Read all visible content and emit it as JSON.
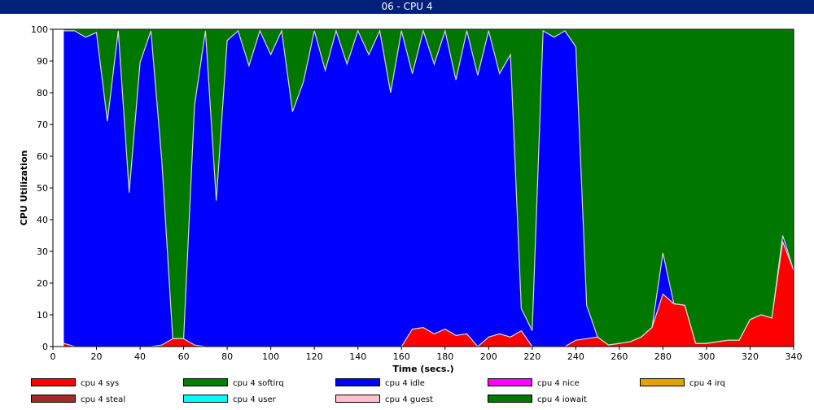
{
  "window": {
    "title": "06 - CPU 4"
  },
  "chart_data": {
    "type": "area",
    "stacked": true,
    "title": "",
    "xlabel": "Time (secs.)",
    "ylabel": "CPU Utilization",
    "xlim": [
      0,
      340
    ],
    "ylim": [
      0,
      100
    ],
    "xticks": [
      0,
      20,
      40,
      60,
      80,
      100,
      120,
      140,
      160,
      180,
      200,
      220,
      240,
      260,
      280,
      300,
      320,
      340
    ],
    "yticks": [
      0,
      10,
      20,
      30,
      40,
      50,
      60,
      70,
      80,
      90,
      100
    ],
    "grid": false,
    "legend_position": "bottom",
    "x": [
      5,
      10,
      15,
      20,
      25,
      30,
      35,
      40,
      45,
      50,
      55,
      60,
      65,
      70,
      75,
      80,
      85,
      90,
      95,
      100,
      105,
      110,
      115,
      120,
      125,
      130,
      135,
      140,
      145,
      150,
      155,
      160,
      165,
      170,
      175,
      180,
      185,
      190,
      195,
      200,
      205,
      210,
      215,
      220,
      225,
      230,
      235,
      240,
      245,
      250,
      255,
      260,
      265,
      270,
      275,
      280,
      285,
      290,
      295,
      300,
      305,
      310,
      315,
      320,
      325,
      330,
      335,
      340
    ],
    "series": [
      {
        "name": "cpu 4 sys",
        "color": "#ff0000",
        "values": [
          1,
          0,
          0,
          0,
          0,
          0,
          0,
          0,
          0,
          0.5,
          2.5,
          2.5,
          0.5,
          0,
          0,
          0,
          0,
          0,
          0,
          0,
          0,
          0,
          0,
          0,
          0,
          0,
          0,
          0,
          0,
          0,
          0,
          0,
          5.5,
          6,
          4,
          5.5,
          3.5,
          4,
          0,
          3,
          4,
          3,
          5,
          0,
          0,
          0,
          0,
          2,
          2.5,
          3,
          0.5,
          1,
          1.5,
          3,
          6,
          16.5,
          13.5,
          13,
          1,
          1,
          1.5,
          2,
          2,
          8.5,
          10,
          9,
          33,
          24
        ]
      },
      {
        "name": "cpu 4 softirq",
        "color": "#008000",
        "values": [
          0,
          0,
          0,
          0,
          0,
          0,
          0,
          0,
          0,
          0,
          0,
          0,
          0,
          0,
          0,
          0,
          0,
          0,
          0,
          0,
          0,
          0,
          0,
          0,
          0,
          0,
          0,
          0,
          0,
          0,
          0,
          0,
          0,
          0,
          0,
          0,
          0,
          0,
          0,
          0,
          0,
          0,
          0,
          0,
          0,
          0,
          0,
          0,
          0,
          0,
          0,
          0,
          0,
          0,
          0,
          0,
          0,
          0,
          0,
          0,
          0,
          0,
          0,
          0,
          0,
          0,
          0,
          0
        ]
      },
      {
        "name": "cpu 4 idle",
        "color": "#0000ff",
        "values": [
          98.5,
          99.5,
          97.5,
          99,
          71,
          99.5,
          48.5,
          89.5,
          99.5,
          58,
          0,
          0,
          75.5,
          99.5,
          46,
          96.5,
          99.5,
          88.5,
          99.5,
          92,
          99.5,
          74,
          83.5,
          99.5,
          87,
          99.5,
          89,
          99.5,
          92,
          99.5,
          80,
          99.5,
          80.5,
          93.5,
          85,
          94,
          80.5,
          95.5,
          85.5,
          96.5,
          82,
          89,
          7,
          5,
          99.5,
          97.5,
          99.5,
          92.5,
          10.5,
          0,
          0,
          0,
          0,
          0,
          0,
          13,
          0,
          0,
          0,
          0,
          0,
          0,
          0,
          0,
          0,
          0,
          2,
          0
        ]
      },
      {
        "name": "cpu 4 nice",
        "color": "#ff00ff",
        "values": [
          0,
          0,
          0,
          0,
          0,
          0,
          0,
          0,
          0,
          0,
          0,
          0,
          0,
          0,
          0,
          0,
          0,
          0,
          0,
          0,
          0,
          0,
          0,
          0,
          0,
          0,
          0,
          0,
          0,
          0,
          0,
          0,
          0,
          0,
          0,
          0,
          0,
          0,
          0,
          0,
          0,
          0,
          0,
          0,
          0,
          0,
          0,
          0,
          0,
          0,
          0,
          0,
          0,
          0,
          0,
          0,
          0,
          0,
          0,
          0,
          0,
          0,
          0,
          0,
          0,
          0,
          0,
          0
        ]
      },
      {
        "name": "cpu 4 irq",
        "color": "#e8a000",
        "values": [
          0,
          0,
          0,
          0,
          0,
          0,
          0,
          0,
          0,
          0,
          0,
          0,
          0,
          0,
          0,
          0,
          0,
          0,
          0,
          0,
          0,
          0,
          0,
          0,
          0,
          0,
          0,
          0,
          0,
          0,
          0,
          0,
          0,
          0,
          0,
          0,
          0,
          0,
          0,
          0,
          0,
          0,
          0,
          0,
          0,
          0,
          0,
          0,
          0,
          0,
          0,
          0,
          0,
          0,
          0,
          0,
          0,
          0,
          0,
          0,
          0,
          0,
          0,
          0,
          0,
          0,
          0,
          0
        ]
      },
      {
        "name": "cpu 4 steal",
        "color": "#a52a2a",
        "values": [
          0,
          0,
          0,
          0,
          0,
          0,
          0,
          0,
          0,
          0,
          0,
          0,
          0,
          0,
          0,
          0,
          0,
          0,
          0,
          0,
          0,
          0,
          0,
          0,
          0,
          0,
          0,
          0,
          0,
          0,
          0,
          0,
          0,
          0,
          0,
          0,
          0,
          0,
          0,
          0,
          0,
          0,
          0,
          0,
          0,
          0,
          0,
          0,
          0,
          0,
          0,
          0,
          0,
          0,
          0,
          0,
          0,
          0,
          0,
          0,
          0,
          0,
          0,
          0,
          0,
          0,
          0,
          0
        ]
      },
      {
        "name": "cpu 4 user",
        "color": "#00ffff",
        "values": [
          0,
          0,
          0,
          0,
          0,
          0,
          0,
          0,
          0,
          0,
          0,
          0,
          0,
          0,
          0,
          0,
          0,
          0,
          0,
          0,
          0,
          0,
          0,
          0,
          0,
          0,
          0,
          0,
          0,
          0,
          0,
          0,
          0,
          0,
          0,
          0,
          0,
          0,
          0,
          0,
          0,
          0,
          0,
          0,
          0,
          0,
          0,
          0,
          0,
          0,
          0,
          0,
          0,
          0,
          0,
          0,
          0,
          0,
          0,
          0,
          0,
          0,
          0,
          0,
          0,
          0,
          0,
          0
        ]
      },
      {
        "name": "cpu 4 guest",
        "color": "#ffc0cb",
        "values": [
          0,
          0,
          0,
          0,
          0,
          0,
          0,
          0,
          0,
          0,
          0,
          0,
          0,
          0,
          0,
          0,
          0,
          0,
          0,
          0,
          0,
          0,
          0,
          0,
          0,
          0,
          0,
          0,
          0,
          0,
          0,
          0,
          0,
          0,
          0,
          0,
          0,
          0,
          0,
          0,
          0,
          0,
          0,
          0,
          0,
          0,
          0,
          0,
          0,
          0,
          0,
          0,
          0,
          0,
          0,
          0,
          0,
          0,
          0,
          0,
          0,
          0,
          0,
          0,
          0,
          0,
          0,
          0
        ]
      },
      {
        "name": "cpu 4 iowait",
        "color": "#007800",
        "values": [
          0.5,
          0.5,
          2.5,
          1,
          29,
          0.5,
          51.5,
          10.5,
          0.5,
          41.5,
          97.5,
          97.5,
          24,
          0.5,
          54,
          3.5,
          0.5,
          11.5,
          0.5,
          8,
          0.5,
          26,
          16.5,
          0.5,
          13,
          0.5,
          11,
          0.5,
          8,
          0.5,
          20,
          0.5,
          14,
          0.5,
          11,
          0.5,
          16,
          0.5,
          14.5,
          0.5,
          14,
          8,
          88,
          95,
          0.5,
          2.5,
          0.5,
          5.5,
          87,
          97,
          99.5,
          99,
          98.5,
          97,
          94,
          70.5,
          86.5,
          87,
          99,
          99,
          98.5,
          98,
          98,
          91.5,
          90,
          91,
          65,
          76
        ]
      }
    ]
  }
}
